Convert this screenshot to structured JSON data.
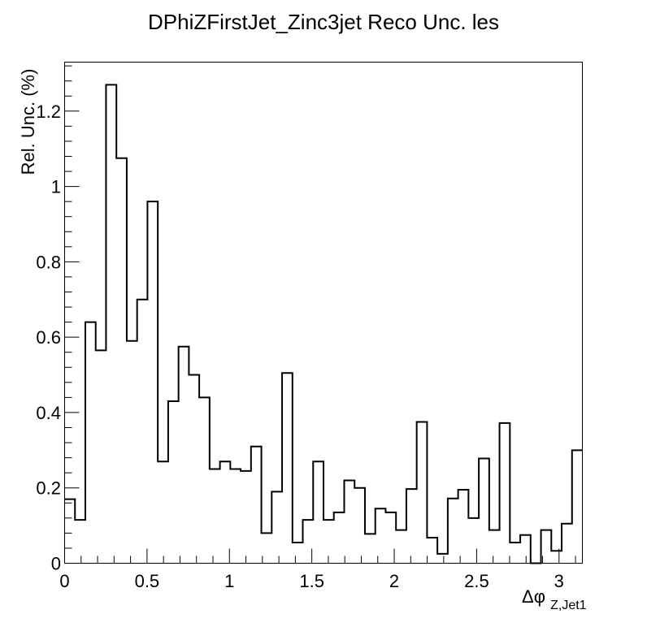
{
  "chart_data": {
    "type": "histogram",
    "title": "DPhiZFirstJet_Zinc3jet Reco Unc. les",
    "ylabel": "Rel. Unc. (%)",
    "xlabel_main": "Δφ",
    "xlabel_sub": "Z,Jet1",
    "xlim": [
      0,
      3.1416
    ],
    "ylim": [
      0,
      1.33
    ],
    "grid": false,
    "line_color": "#000000",
    "x_ticks": [
      0,
      0.5,
      1,
      1.5,
      2,
      2.5,
      3
    ],
    "x_tick_labels": [
      "0",
      "0.5",
      "1",
      "1.5",
      "2",
      "2.5",
      "3"
    ],
    "y_ticks": [
      0,
      0.2,
      0.4,
      0.6,
      0.8,
      1,
      1.2
    ],
    "y_tick_labels": [
      "0",
      "0.2",
      "0.4",
      "0.6",
      "0.8",
      "1",
      "1.2"
    ],
    "bin_edges": [
      0,
      0.0628,
      0.1257,
      0.1885,
      0.2513,
      0.3142,
      0.377,
      0.4398,
      0.5027,
      0.5655,
      0.6283,
      0.6912,
      0.754,
      0.8168,
      0.8796,
      0.9425,
      1.0053,
      1.0681,
      1.131,
      1.1938,
      1.2566,
      1.3195,
      1.3823,
      1.4451,
      1.508,
      1.5708,
      1.6336,
      1.6965,
      1.7593,
      1.8221,
      1.885,
      1.9478,
      2.0106,
      2.0735,
      2.1363,
      2.1991,
      2.2619,
      2.3248,
      2.3876,
      2.4504,
      2.5133,
      2.5761,
      2.6389,
      2.7018,
      2.7646,
      2.8274,
      2.8903,
      2.9531,
      3.0159,
      3.0788,
      3.1416
    ],
    "values": [
      0.17,
      0.115,
      0.64,
      0.565,
      1.27,
      1.075,
      0.59,
      0.7,
      0.96,
      0.27,
      0.43,
      0.575,
      0.5,
      0.44,
      0.25,
      0.27,
      0.25,
      0.245,
      0.31,
      0.08,
      0.19,
      0.505,
      0.055,
      0.115,
      0.27,
      0.115,
      0.135,
      0.22,
      0.2,
      0.078,
      0.145,
      0.135,
      0.088,
      0.197,
      0.375,
      0.068,
      0.025,
      0.172,
      0.195,
      0.12,
      0.278,
      0.088,
      0.372,
      0.055,
      0.075,
      0.0,
      0.088,
      0.033,
      0.105,
      0.3
    ]
  }
}
